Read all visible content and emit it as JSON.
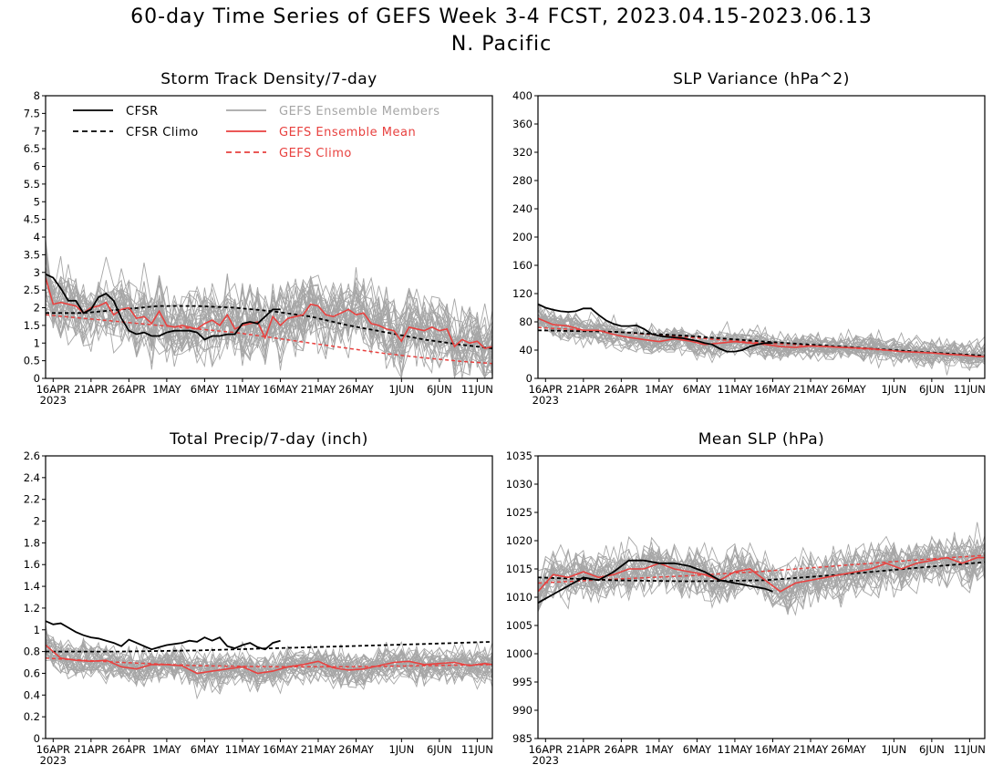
{
  "figure": {
    "title_line1": "60-day Time Series of GEFS Week 3-4 FCST, 2023.04.15-2023.06.13",
    "title_line2": "N. Pacific"
  },
  "colors": {
    "cfsr": "#000000",
    "members": "#a6a6a6",
    "ens_mean": "#e8413f",
    "gefs_climo": "#e8413f"
  },
  "legend": [
    {
      "label": "CFSR",
      "style": "solid",
      "color": "#000000"
    },
    {
      "label": "CFSR Climo",
      "style": "dashed",
      "color": "#000000"
    },
    {
      "label": "GEFS Ensemble Members",
      "style": "solid",
      "color": "#a6a6a6"
    },
    {
      "label": "GEFS Ensemble Mean",
      "style": "solid",
      "color": "#e8413f"
    },
    {
      "label": "GEFS Climo",
      "style": "dashed",
      "color": "#e8413f"
    }
  ],
  "x_axis": {
    "ticks": [
      "16APR",
      "21APR",
      "26APR",
      "1MAY",
      "6MAY",
      "11MAY",
      "16MAY",
      "21MAY",
      "26MAY",
      "1JUN",
      "6JUN",
      "11JUN"
    ],
    "tick_days": [
      1,
      6,
      11,
      16,
      21,
      26,
      31,
      36,
      41,
      47,
      52,
      57
    ],
    "year_label": "2023",
    "xlim": [
      0,
      59
    ]
  },
  "chart_data": [
    {
      "type": "line",
      "title": "Storm Track Density/7-day",
      "ylim": [
        0,
        8
      ],
      "yticks": [
        "0",
        "0.5",
        "1",
        "1.5",
        "2",
        "2.5",
        "3",
        "3.5",
        "4",
        "4.5",
        "5",
        "5.5",
        "6",
        "6.5",
        "7",
        "7.5",
        "8"
      ],
      "legend_position": "top-left",
      "member_count": 30,
      "member_spread": 0.75,
      "series": [
        {
          "name": "CFSR",
          "x": [
            0,
            1,
            2,
            3,
            4,
            5,
            6,
            7,
            8,
            9,
            10,
            11,
            12,
            13,
            14,
            15,
            16,
            17,
            18,
            19,
            20,
            21,
            22,
            23,
            24,
            25,
            26,
            27,
            28,
            29,
            30,
            31
          ],
          "values": [
            2.95,
            2.85,
            2.55,
            2.2,
            2.2,
            1.85,
            1.95,
            2.3,
            2.4,
            2.2,
            1.7,
            1.35,
            1.25,
            1.3,
            1.2,
            1.2,
            1.3,
            1.35,
            1.35,
            1.35,
            1.3,
            1.1,
            1.2,
            1.2,
            1.25,
            1.25,
            1.55,
            1.6,
            1.55,
            1.75,
            1.95,
            1.95
          ]
        },
        {
          "name": "CFSR Climo",
          "x": [
            0,
            5,
            10,
            15,
            20,
            25,
            30,
            35,
            40,
            45,
            50,
            55,
            59
          ],
          "values": [
            1.85,
            1.85,
            1.95,
            2.05,
            2.05,
            2.0,
            1.9,
            1.75,
            1.5,
            1.3,
            1.1,
            0.95,
            0.85
          ]
        },
        {
          "name": "GEFS Ensemble Mean",
          "x": [
            0,
            1,
            2,
            3,
            4,
            5,
            6,
            7,
            8,
            9,
            10,
            11,
            12,
            13,
            14,
            15,
            16,
            17,
            18,
            19,
            20,
            21,
            22,
            23,
            24,
            25,
            26,
            27,
            28,
            29,
            30,
            31,
            32,
            33,
            34,
            35,
            36,
            37,
            38,
            39,
            40,
            41,
            42,
            43,
            44,
            45,
            46,
            47,
            48,
            49,
            50,
            51,
            52,
            53,
            54,
            55,
            56,
            57,
            58,
            59
          ],
          "values": [
            2.85,
            2.1,
            2.15,
            2.1,
            2.05,
            1.85,
            2.0,
            2.05,
            2.15,
            1.8,
            1.95,
            2.0,
            1.7,
            1.75,
            1.55,
            1.9,
            1.5,
            1.45,
            1.5,
            1.45,
            1.4,
            1.55,
            1.65,
            1.5,
            1.8,
            1.4,
            1.5,
            1.55,
            1.6,
            1.15,
            1.75,
            1.5,
            1.7,
            1.75,
            1.8,
            2.1,
            2.05,
            1.8,
            1.75,
            1.85,
            1.95,
            1.8,
            1.85,
            1.55,
            1.5,
            1.4,
            1.35,
            1.05,
            1.45,
            1.4,
            1.35,
            1.45,
            1.35,
            1.4,
            0.9,
            1.1,
            1.0,
            1.05,
            0.85,
            0.9
          ]
        },
        {
          "name": "GEFS Climo",
          "x": [
            0,
            5,
            10,
            15,
            20,
            25,
            30,
            35,
            40,
            45,
            50,
            55,
            59
          ],
          "values": [
            1.8,
            1.7,
            1.6,
            1.5,
            1.4,
            1.3,
            1.15,
            1.0,
            0.85,
            0.7,
            0.58,
            0.48,
            0.42
          ]
        }
      ]
    },
    {
      "type": "line",
      "title": "SLP Variance (hPa^2)",
      "ylim": [
        0,
        400
      ],
      "yticks": [
        "0",
        "40",
        "80",
        "120",
        "160",
        "200",
        "240",
        "280",
        "320",
        "360",
        "400"
      ],
      "member_count": 30,
      "member_spread": 14,
      "series": [
        {
          "name": "CFSR",
          "x": [
            0,
            1,
            2,
            3,
            4,
            5,
            6,
            7,
            8,
            9,
            10,
            11,
            12,
            13,
            14,
            15,
            16,
            17,
            18,
            19,
            20,
            21,
            22,
            23,
            24,
            25,
            26,
            27,
            28,
            29,
            30,
            31
          ],
          "values": [
            105,
            100,
            97,
            95,
            94,
            95,
            99,
            99,
            90,
            82,
            77,
            74,
            74,
            75,
            70,
            63,
            60,
            59,
            58,
            57,
            55,
            53,
            50,
            48,
            42,
            38,
            38,
            40,
            45,
            48,
            50,
            50
          ]
        },
        {
          "name": "CFSR Climo",
          "x": [
            0,
            10,
            20,
            30,
            40,
            50,
            59
          ],
          "values": [
            68,
            66,
            60,
            52,
            45,
            38,
            32
          ]
        },
        {
          "name": "GEFS Ensemble Mean",
          "x": [
            0,
            2,
            4,
            6,
            8,
            10,
            12,
            14,
            16,
            18,
            20,
            22,
            24,
            26,
            28,
            30,
            32,
            34,
            36,
            38,
            40,
            42,
            44,
            46,
            48,
            50,
            52,
            54,
            56,
            58,
            59
          ],
          "values": [
            85,
            76,
            74,
            68,
            68,
            62,
            58,
            55,
            52,
            56,
            53,
            48,
            50,
            52,
            50,
            48,
            45,
            44,
            46,
            45,
            44,
            43,
            42,
            40,
            38,
            37,
            36,
            34,
            33,
            31,
            31
          ]
        },
        {
          "name": "GEFS Climo",
          "x": [
            0,
            10,
            20,
            30,
            40,
            50,
            59
          ],
          "values": [
            72,
            66,
            58,
            50,
            44,
            37,
            32
          ]
        }
      ]
    },
    {
      "type": "line",
      "title": "Total Precip/7-day (inch)",
      "ylim": [
        0,
        2.6
      ],
      "yticks": [
        "0",
        "0.2",
        "0.4",
        "0.6",
        "0.8",
        "1",
        "1.2",
        "1.4",
        "1.6",
        "1.8",
        "2",
        "2.2",
        "2.4",
        "2.6"
      ],
      "member_count": 30,
      "member_spread": 0.12,
      "series": [
        {
          "name": "CFSR",
          "x": [
            0,
            1,
            2,
            3,
            4,
            5,
            6,
            7,
            8,
            9,
            10,
            11,
            12,
            13,
            14,
            15,
            16,
            17,
            18,
            19,
            20,
            21,
            22,
            23,
            24,
            25,
            26,
            27,
            28,
            29,
            30,
            31
          ],
          "values": [
            1.08,
            1.05,
            1.06,
            1.02,
            0.98,
            0.95,
            0.93,
            0.92,
            0.9,
            0.88,
            0.85,
            0.91,
            0.88,
            0.85,
            0.82,
            0.84,
            0.86,
            0.87,
            0.88,
            0.9,
            0.89,
            0.93,
            0.9,
            0.93,
            0.85,
            0.83,
            0.86,
            0.88,
            0.84,
            0.82,
            0.88,
            0.9
          ]
        },
        {
          "name": "CFSR Climo",
          "x": [
            0,
            10,
            20,
            30,
            40,
            50,
            59
          ],
          "values": [
            0.8,
            0.8,
            0.81,
            0.83,
            0.85,
            0.87,
            0.89
          ]
        },
        {
          "name": "GEFS Ensemble Mean",
          "x": [
            0,
            2,
            4,
            6,
            8,
            10,
            12,
            14,
            16,
            18,
            20,
            22,
            24,
            26,
            28,
            30,
            32,
            34,
            36,
            38,
            40,
            42,
            44,
            46,
            48,
            50,
            52,
            54,
            56,
            58,
            59
          ],
          "values": [
            0.86,
            0.74,
            0.72,
            0.71,
            0.72,
            0.66,
            0.64,
            0.68,
            0.68,
            0.67,
            0.6,
            0.62,
            0.64,
            0.66,
            0.6,
            0.62,
            0.66,
            0.68,
            0.71,
            0.65,
            0.63,
            0.64,
            0.67,
            0.7,
            0.71,
            0.68,
            0.69,
            0.7,
            0.67,
            0.69,
            0.68
          ]
        },
        {
          "name": "GEFS Climo",
          "x": [
            0,
            10,
            20,
            30,
            40,
            50,
            59
          ],
          "values": [
            0.74,
            0.7,
            0.67,
            0.66,
            0.66,
            0.67,
            0.68
          ]
        }
      ]
    },
    {
      "type": "line",
      "title": "Mean SLP (hPa)",
      "ylim": [
        985,
        1035
      ],
      "yticks": [
        "985",
        "990",
        "995",
        "1000",
        "1005",
        "1010",
        "1015",
        "1020",
        "1025",
        "1030",
        "1035"
      ],
      "member_count": 30,
      "member_spread": 3.2,
      "series": [
        {
          "name": "CFSR",
          "x": [
            0,
            2,
            4,
            6,
            8,
            10,
            12,
            14,
            16,
            18,
            20,
            22,
            24,
            26,
            28,
            30,
            31
          ],
          "values": [
            1009,
            1010.5,
            1012,
            1013.5,
            1013,
            1014.5,
            1016.5,
            1016.5,
            1016,
            1016,
            1015.5,
            1014.5,
            1013,
            1012.5,
            1012,
            1011.5,
            1011
          ]
        },
        {
          "name": "CFSR Climo",
          "x": [
            0,
            10,
            20,
            30,
            40,
            50,
            59
          ],
          "values": [
            1013.5,
            1013,
            1012.8,
            1013,
            1014,
            1015.2,
            1016.2
          ]
        },
        {
          "name": "GEFS Ensemble Mean",
          "x": [
            0,
            2,
            4,
            6,
            8,
            10,
            12,
            14,
            16,
            18,
            20,
            22,
            24,
            26,
            28,
            30,
            32,
            34,
            36,
            38,
            40,
            42,
            44,
            46,
            48,
            50,
            52,
            54,
            56,
            58,
            59
          ],
          "values": [
            1011,
            1014,
            1013.5,
            1014.5,
            1013.5,
            1014,
            1015,
            1015,
            1016,
            1015,
            1014.5,
            1014,
            1013,
            1014.5,
            1015,
            1013,
            1011,
            1012.5,
            1013,
            1013.5,
            1014,
            1014.5,
            1015,
            1016,
            1015,
            1016,
            1016.5,
            1017,
            1016,
            1017,
            1017
          ]
        },
        {
          "name": "GEFS Climo",
          "x": [
            0,
            10,
            20,
            30,
            40,
            50,
            59
          ],
          "values": [
            1012.5,
            1013.2,
            1013.8,
            1014.6,
            1015.6,
            1016.6,
            1017.4
          ]
        }
      ]
    }
  ]
}
